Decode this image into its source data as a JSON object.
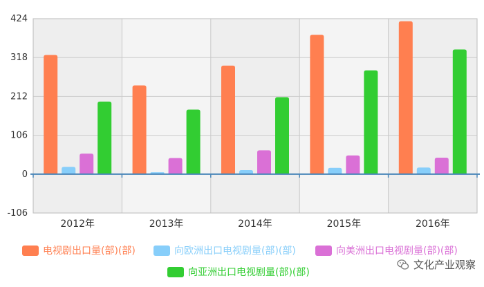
{
  "chart_data": {
    "type": "bar",
    "categories": [
      "2012年",
      "2013年",
      "2014年",
      "2015年",
      "2016年"
    ],
    "series": [
      {
        "name": "电视剧出口量(部)(部)",
        "color": "#ff7f50",
        "values": [
          325,
          242,
          296,
          380,
          417
        ]
      },
      {
        "name": "向欧洲出口电视剧量(部)(部)",
        "color": "#87cefa",
        "values": [
          20,
          5,
          11,
          17,
          18
        ]
      },
      {
        "name": "向美洲出口电视剧量(部)(部)",
        "color": "#da70d6",
        "values": [
          56,
          44,
          65,
          51,
          45
        ]
      },
      {
        "name": "向亚洲出口电视剧量(部)(部)",
        "color": "#32cd32",
        "values": [
          198,
          176,
          210,
          283,
          340
        ]
      }
    ],
    "yticks": [
      "-106",
      "0",
      "106",
      "212",
      "318",
      "424"
    ],
    "ylim": [
      -106,
      424
    ],
    "grid": true,
    "legend_position": "bottom"
  },
  "watermark": {
    "text": "文化产业观察",
    "icon": "wechat-icon"
  }
}
